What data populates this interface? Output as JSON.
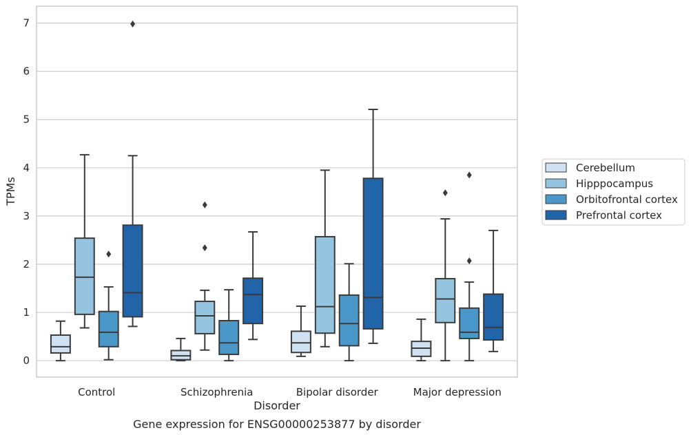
{
  "chart_data": {
    "type": "box",
    "title": "Gene expression for ENSG00000253877 by disorder",
    "xlabel": "Disorder",
    "ylabel": "TPMs",
    "ylim": [
      -0.34,
      7.35
    ],
    "yticks": [
      "0",
      "1",
      "2",
      "3",
      "4",
      "5",
      "6",
      "7"
    ],
    "grid": true,
    "legend_placement": "right",
    "categories": [
      "Control",
      "Schizophrenia",
      "Bipolar disorder",
      "Major depression"
    ],
    "series": [
      {
        "name": "Cerebellum",
        "color": "#d0e1f2",
        "boxes": [
          {
            "whislo": 0.0,
            "q1": 0.16,
            "med": 0.29,
            "q3": 0.53,
            "whishi": 0.82,
            "fliers": []
          },
          {
            "whislo": 0.0,
            "q1": 0.02,
            "med": 0.1,
            "q3": 0.21,
            "whishi": 0.46,
            "fliers": []
          },
          {
            "whislo": 0.09,
            "q1": 0.17,
            "med": 0.37,
            "q3": 0.61,
            "whishi": 1.13,
            "fliers": []
          },
          {
            "whislo": 0.0,
            "q1": 0.09,
            "med": 0.26,
            "q3": 0.4,
            "whishi": 0.86,
            "fliers": []
          }
        ]
      },
      {
        "name": "Hipppocampus",
        "color": "#94c4df",
        "boxes": [
          {
            "whislo": 0.68,
            "q1": 0.96,
            "med": 1.73,
            "q3": 2.54,
            "whishi": 4.27,
            "fliers": []
          },
          {
            "whislo": 0.22,
            "q1": 0.56,
            "med": 0.93,
            "q3": 1.23,
            "whishi": 1.46,
            "fliers": [
              2.34,
              3.23
            ]
          },
          {
            "whislo": 0.29,
            "q1": 0.57,
            "med": 1.12,
            "q3": 2.57,
            "whishi": 3.95,
            "fliers": []
          },
          {
            "whislo": 0.0,
            "q1": 0.79,
            "med": 1.28,
            "q3": 1.7,
            "whishi": 2.94,
            "fliers": [
              3.48
            ]
          }
        ]
      },
      {
        "name": "Orbitofrontal cortex",
        "color": "#4a98c9",
        "boxes": [
          {
            "whislo": 0.02,
            "q1": 0.29,
            "med": 0.59,
            "q3": 1.02,
            "whishi": 1.53,
            "fliers": [
              2.21
            ]
          },
          {
            "whislo": 0.0,
            "q1": 0.13,
            "med": 0.37,
            "q3": 0.83,
            "whishi": 1.47,
            "fliers": []
          },
          {
            "whislo": 0.0,
            "q1": 0.31,
            "med": 0.77,
            "q3": 1.36,
            "whishi": 2.01,
            "fliers": []
          },
          {
            "whislo": 0.0,
            "q1": 0.46,
            "med": 0.59,
            "q3": 1.09,
            "whishi": 1.63,
            "fliers": [
              2.07,
              3.85
            ]
          }
        ]
      },
      {
        "name": "Prefrontal cortex",
        "color": "#2264a8",
        "boxes": [
          {
            "whislo": 0.71,
            "q1": 0.91,
            "med": 1.41,
            "q3": 2.81,
            "whishi": 4.25,
            "fliers": [
              6.98
            ]
          },
          {
            "whislo": 0.44,
            "q1": 0.77,
            "med": 1.37,
            "q3": 1.71,
            "whishi": 2.67,
            "fliers": []
          },
          {
            "whislo": 0.36,
            "q1": 0.66,
            "med": 1.31,
            "q3": 3.78,
            "whishi": 5.21,
            "fliers": []
          },
          {
            "whislo": 0.19,
            "q1": 0.43,
            "med": 0.69,
            "q3": 1.38,
            "whishi": 2.7,
            "fliers": []
          }
        ]
      }
    ]
  }
}
